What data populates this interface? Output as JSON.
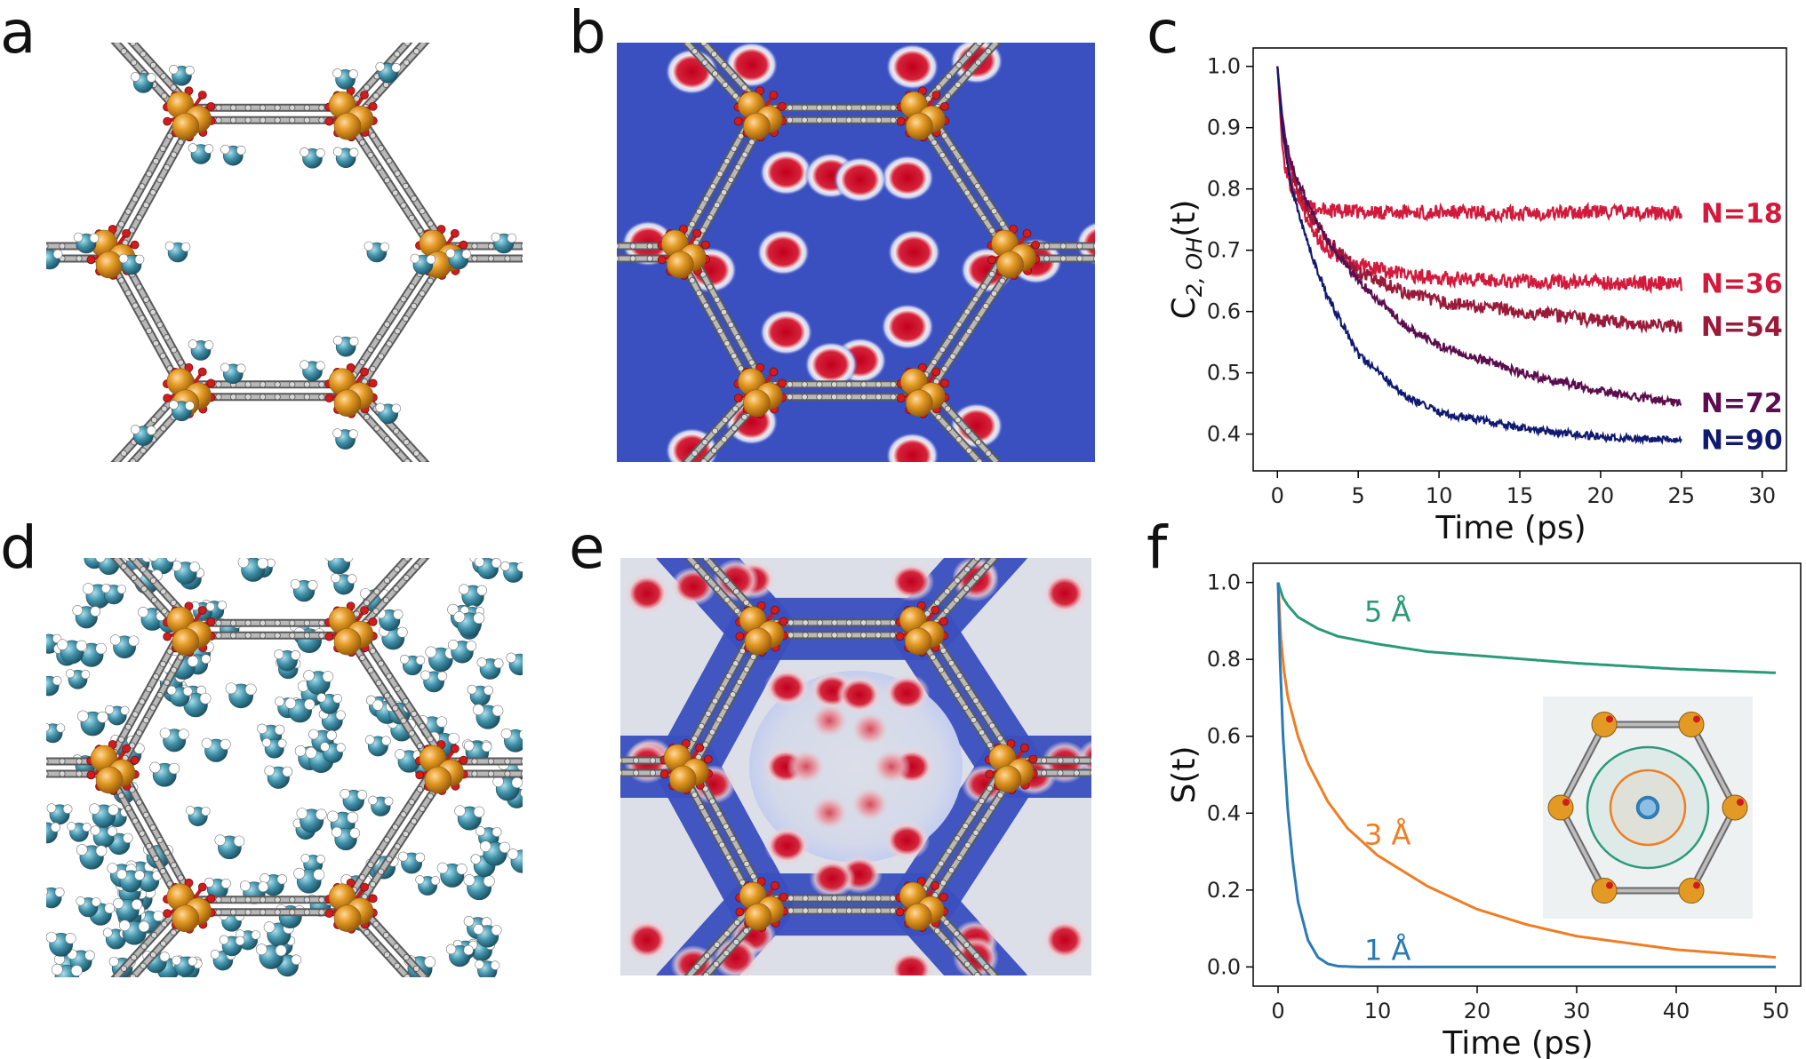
{
  "panels": {
    "a": {
      "letter": "a"
    },
    "b": {
      "letter": "b"
    },
    "c": {
      "letter": "c"
    },
    "d": {
      "letter": "d"
    },
    "e": {
      "letter": "e"
    },
    "f": {
      "letter": "f"
    }
  },
  "colors": {
    "metal": "#e39a24",
    "oxygen": "#d01c1f",
    "carbon": "#9a9a9a",
    "water": "#3f8fa8",
    "hydrogen": "#f2f2f2",
    "density_bg": "#3a4fc0",
    "density_peak": "#c1001d",
    "n18": "#d11a3c",
    "n36": "#d11a3c",
    "n54": "#9a1a3a",
    "n72": "#5c0d4e",
    "n90": "#101a70",
    "r5": "#2a9a78",
    "r3": "#ef7d24",
    "r1": "#2a7ab4"
  },
  "chart_data": [
    {
      "id": "c",
      "type": "line",
      "xlabel": "Time (ps)",
      "ylabel": "C2, OH(t)",
      "ylabel_main": "C",
      "ylabel_sub": "2, OH",
      "ylabel_tail": "(t)",
      "xlim": [
        -1.5,
        31.5
      ],
      "ylim": [
        0.34,
        1.03
      ],
      "xticks": [
        0,
        5,
        10,
        15,
        20,
        25,
        30
      ],
      "yticks": [
        0.4,
        0.5,
        0.6,
        0.7,
        0.8,
        0.9,
        1.0
      ],
      "ytick_labels": [
        "0.4",
        "0.5",
        "0.6",
        "0.7",
        "0.8",
        "0.9",
        "1.0"
      ],
      "series": [
        {
          "name": "N=18",
          "color": "#d11a3c",
          "plateau": 0.76,
          "tau": 0.5,
          "noise": 0.012,
          "x": [
            0,
            0.3,
            0.6,
            1,
            1.5,
            2,
            3,
            5,
            10,
            15,
            20,
            25
          ],
          "y": [
            1.0,
            0.87,
            0.82,
            0.79,
            0.775,
            0.77,
            0.765,
            0.762,
            0.762,
            0.76,
            0.763,
            0.76
          ],
          "label_y": 0.76
        },
        {
          "name": "N=36",
          "color": "#d11a3c",
          "plateau": 0.645,
          "tau": 1.8,
          "noise": 0.012,
          "x": [
            0,
            0.3,
            0.6,
            1,
            2,
            3,
            5,
            8,
            10,
            15,
            20,
            25
          ],
          "y": [
            1.0,
            0.9,
            0.84,
            0.8,
            0.74,
            0.7,
            0.675,
            0.66,
            0.655,
            0.65,
            0.647,
            0.645
          ],
          "label_y": 0.645
        },
        {
          "name": "N=54",
          "color": "#9a1a3a",
          "plateau": 0.575,
          "tau": 2.8,
          "noise": 0.011,
          "x": [
            0,
            0.3,
            0.6,
            1,
            2,
            3,
            5,
            8,
            10,
            15,
            20,
            25
          ],
          "y": [
            1.0,
            0.91,
            0.86,
            0.82,
            0.76,
            0.72,
            0.665,
            0.63,
            0.615,
            0.6,
            0.585,
            0.575
          ],
          "label_y": 0.575
        },
        {
          "name": "N=72",
          "color": "#5c0d4e",
          "plateau": 0.44,
          "tau": 5.5,
          "noise": 0.007,
          "x": [
            0,
            0.3,
            0.6,
            1,
            2,
            3,
            5,
            8,
            10,
            15,
            20,
            25
          ],
          "y": [
            1.0,
            0.92,
            0.87,
            0.83,
            0.77,
            0.72,
            0.65,
            0.575,
            0.545,
            0.5,
            0.47,
            0.45
          ],
          "label_y": 0.45
        },
        {
          "name": "N=90",
          "color": "#101a70",
          "plateau": 0.385,
          "tau": 3.2,
          "noise": 0.006,
          "x": [
            0,
            0.3,
            0.6,
            1,
            2,
            3,
            5,
            8,
            10,
            15,
            20,
            25
          ],
          "y": [
            1.0,
            0.9,
            0.84,
            0.79,
            0.7,
            0.63,
            0.53,
            0.46,
            0.435,
            0.41,
            0.395,
            0.39
          ],
          "label_y": 0.39
        }
      ]
    },
    {
      "id": "f",
      "type": "line",
      "xlabel": "Time (ps)",
      "ylabel": "S(t)",
      "xlim": [
        -2.5,
        52.5
      ],
      "ylim": [
        -0.05,
        1.05
      ],
      "xticks": [
        0,
        10,
        20,
        30,
        40,
        50
      ],
      "yticks": [
        0.0,
        0.2,
        0.4,
        0.6,
        0.8,
        1.0
      ],
      "ytick_labels": [
        "0.0",
        "0.2",
        "0.4",
        "0.6",
        "0.8",
        "1.0"
      ],
      "series": [
        {
          "name": "5 Å",
          "color": "#2a9a78",
          "x": [
            0,
            0.5,
            1,
            2,
            4,
            6,
            10,
            15,
            20,
            30,
            40,
            50
          ],
          "y": [
            1.0,
            0.96,
            0.94,
            0.91,
            0.88,
            0.86,
            0.84,
            0.82,
            0.81,
            0.79,
            0.775,
            0.765
          ]
        },
        {
          "name": "3 Å",
          "color": "#ef7d24",
          "x": [
            0,
            0.3,
            0.6,
            1,
            2,
            3,
            5,
            7,
            10,
            15,
            20,
            25,
            30,
            40,
            50
          ],
          "y": [
            1.0,
            0.85,
            0.77,
            0.7,
            0.6,
            0.53,
            0.43,
            0.36,
            0.29,
            0.21,
            0.15,
            0.11,
            0.08,
            0.045,
            0.025
          ]
        },
        {
          "name": "1 Å",
          "color": "#2a7ab4",
          "x": [
            0,
            0.2,
            0.5,
            1,
            1.5,
            2,
            3,
            4,
            5,
            6,
            8,
            10,
            20,
            30,
            40,
            50
          ],
          "y": [
            1.0,
            0.8,
            0.6,
            0.4,
            0.27,
            0.17,
            0.07,
            0.025,
            0.008,
            0.002,
            0.0,
            0.0,
            0.0,
            0.0,
            0.0,
            0.0
          ]
        }
      ],
      "inset": {
        "rings": [
          "#2a9a78",
          "#ef7d24",
          "#2a7ab4"
        ]
      }
    }
  ]
}
